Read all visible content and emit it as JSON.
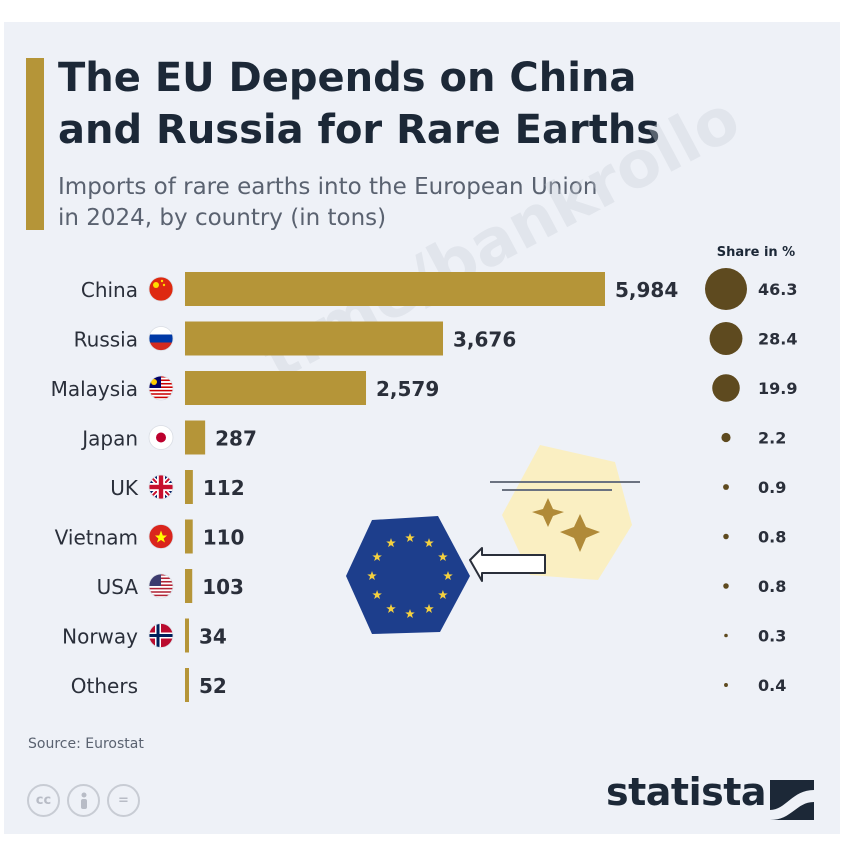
{
  "header": {
    "title_line1": "The EU Depends on China",
    "title_line2": "and Russia for Rare Earths",
    "subtitle_line1": "Imports of rare earths into the European Union",
    "subtitle_line2": "in 2024, by country (in tons)"
  },
  "share_header": "Share in %",
  "chart_data": {
    "type": "bar",
    "orientation": "horizontal",
    "title": "The EU Depends on China and Russia for Rare Earths",
    "subtitle": "Imports of rare earths into the European Union in 2024, by country (in tons)",
    "categories": [
      "China",
      "Russia",
      "Malaysia",
      "Japan",
      "UK",
      "Vietnam",
      "USA",
      "Norway",
      "Others"
    ],
    "values": [
      5984,
      3676,
      2579,
      287,
      112,
      110,
      103,
      34,
      52
    ],
    "value_labels": [
      "5,984",
      "3,676",
      "2,579",
      "287",
      "112",
      "110",
      "103",
      "34",
      "52"
    ],
    "share_percent": [
      46.3,
      28.4,
      19.9,
      2.2,
      0.9,
      0.8,
      0.8,
      0.3,
      0.4
    ],
    "share_labels": [
      "46.3",
      "28.4",
      "19.9",
      "2.2",
      "0.9",
      "0.8",
      "0.8",
      "0.3",
      "0.4"
    ],
    "flags": [
      "china-flag-icon",
      "russia-flag-icon",
      "malaysia-flag-icon",
      "japan-flag-icon",
      "uk-flag-icon",
      "vietnam-flag-icon",
      "usa-flag-icon",
      "norway-flag-icon",
      ""
    ],
    "xlim": [
      0,
      5984
    ],
    "grid": false,
    "bar_color": "#b59538",
    "bubble_color": "#5e4a1f"
  },
  "footer": {
    "source": "Source: Eurostat",
    "brand": "statista",
    "license_icons": [
      "cc-icon",
      "person-icon",
      "equals-icon"
    ]
  },
  "watermark": "t.me/bankrollo",
  "colors": {
    "accent": "#b59538",
    "title": "#1c2837",
    "subtitle": "#5a6270",
    "eu_blue": "#1d3e8c",
    "eu_star": "#f4d03f",
    "sparkle_bg": "#faefc2"
  }
}
